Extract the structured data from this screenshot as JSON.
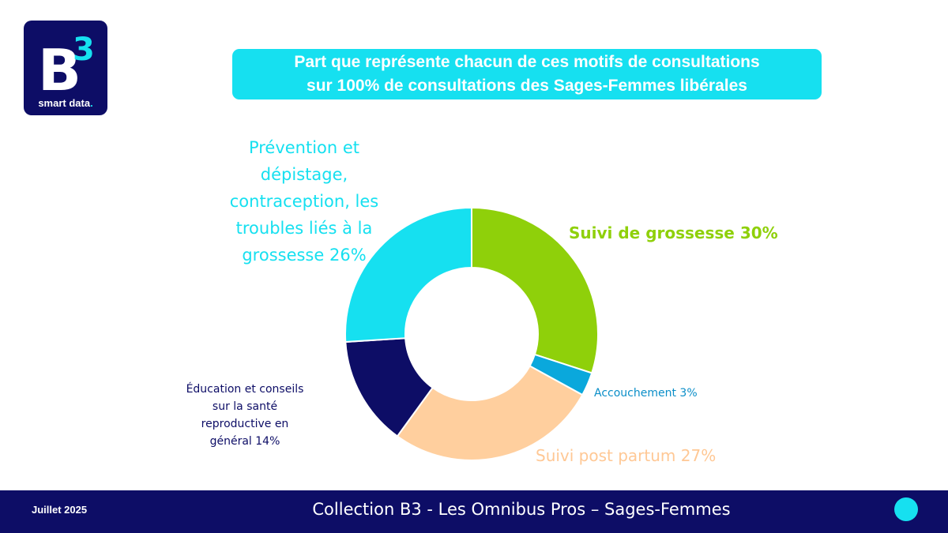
{
  "logo": {
    "text": "smart data",
    "dot": "."
  },
  "title": {
    "line1": "Part que représente chacun de ces motifs de consultations",
    "line2": "sur 100% de consultations des Sages-Femmes libérales"
  },
  "chart_data": {
    "type": "pie",
    "donut": true,
    "slices": [
      {
        "label": "Suivi de grossesse 30%",
        "value": 30,
        "color": "#8fd00a"
      },
      {
        "label": "Accouchement 3%",
        "value": 3,
        "color": "#0aa8dc"
      },
      {
        "label": "Suivi post partum 27%",
        "value": 27,
        "color": "#ffcf9e"
      },
      {
        "label": "Éducation et conseils sur la santé reproductive en général 14%",
        "value": 14,
        "color": "#0d0d66"
      },
      {
        "label": "Prévention et dépistage, contraception, les troubles liés à la grossesse 26%",
        "value": 26,
        "color": "#16e0f0"
      }
    ]
  },
  "labels": {
    "prevention": [
      "Prévention et",
      "dépistage,",
      "contraception, les",
      "troubles liés à la",
      "grossesse 26%"
    ],
    "suivi": "Suivi de grossesse 30%",
    "accouchement": "Accouchement 3%",
    "post_partum": "Suivi post partum 27%",
    "education": [
      "Éducation et conseils",
      "sur la santé",
      "reproductive en",
      "général 14%"
    ]
  },
  "footer": {
    "date": "Juillet 2025",
    "title": "Collection  B3 - Les Omnibus Pros – Sages-Femmes"
  }
}
